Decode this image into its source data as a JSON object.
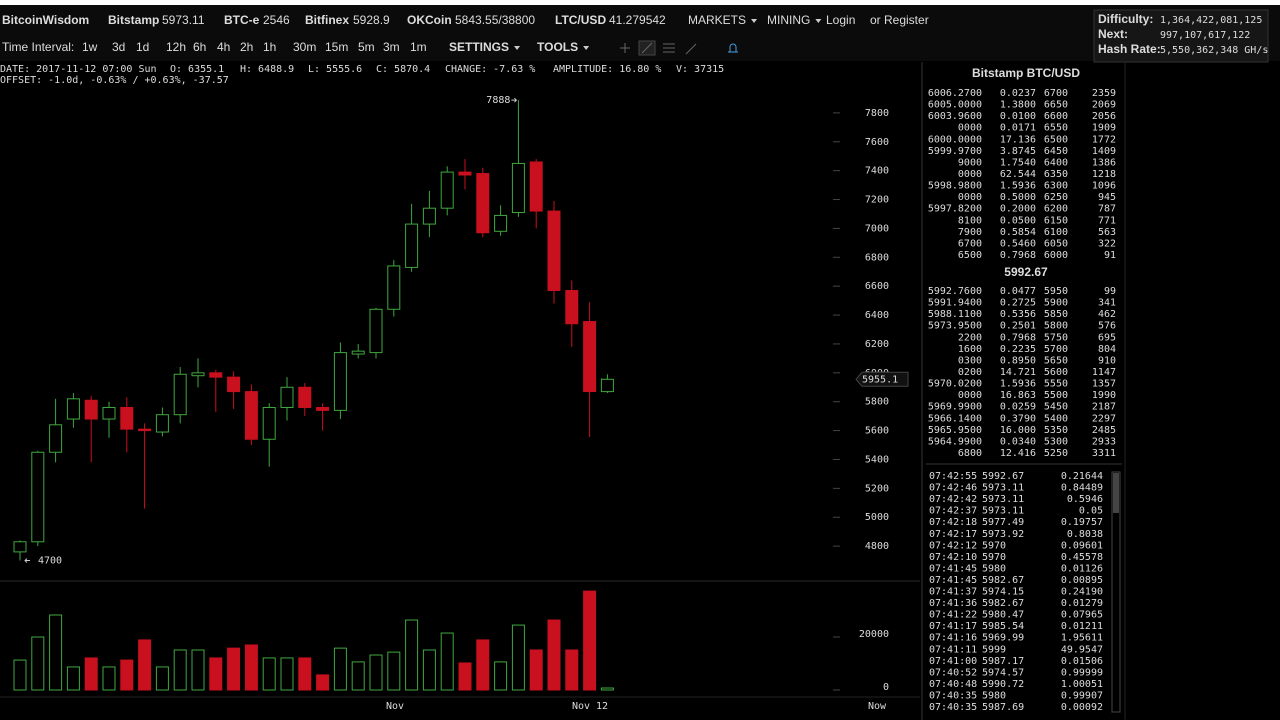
{
  "header": {
    "logo": "BitcoinWisdom",
    "tickers": [
      {
        "name": "Bitstamp",
        "price": "5973.11"
      },
      {
        "name": "BTC-e",
        "price": "2546"
      },
      {
        "name": "Bitfinex",
        "price": "5928.9"
      },
      {
        "name": "OKCoin",
        "price": "5843.55/38800"
      },
      {
        "name": "LTC/USD",
        "price": "41.279542"
      }
    ],
    "menus": [
      "MARKETS",
      "MINING"
    ],
    "login": "Login",
    "or": "or",
    "register": "Register"
  },
  "network": [
    {
      "label": "Difficulty:",
      "value": "1,364,422,081,125"
    },
    {
      "label": "Next:",
      "value": "997,107,617,122"
    },
    {
      "label": "Hash Rate:",
      "value": "5,550,362,348 GH/s"
    }
  ],
  "toolbar": {
    "label": "Time Interval:",
    "intervals": [
      "1w",
      "3d",
      "1d",
      "12h",
      "6h",
      "4h",
      "2h",
      "1h",
      "30m",
      "15m",
      "5m",
      "3m",
      "1m"
    ],
    "active": "1d",
    "menus": [
      "SETTINGS",
      "TOOLS"
    ]
  },
  "info": {
    "line1": [
      "DATE: 2017-11-12 07:00 Sun",
      "O: 6355.1",
      "H: 6488.9",
      "L: 5555.6",
      "C: 5870.4",
      "CHANGE: -7.63 %",
      "AMPLITUDE: 16.80 %",
      "V: 37315"
    ],
    "line2": "OFFSET: -1.0d, -0.63% / +0.63%, -37.57"
  },
  "chart": {
    "type": "candlestick",
    "up_color": "#3fa83f",
    "down_color": "#c8101e",
    "ylim": [
      4600,
      8000
    ],
    "yticks": [
      4800,
      5000,
      5200,
      5400,
      5600,
      5800,
      6000,
      6200,
      6400,
      6600,
      6800,
      7000,
      7200,
      7400,
      7600,
      7800
    ],
    "volume_ylim": [
      0,
      40000
    ],
    "volume_yticks": [
      0,
      20000
    ],
    "xticks": [
      "Nov",
      "Nov 12",
      "Now"
    ],
    "high_label": 7888,
    "low_label": 4700,
    "last_price": 5955.1,
    "candles": [
      {
        "open": 4760,
        "high": 4840,
        "low": 4700,
        "close": 4830,
        "volume": 11300
      },
      {
        "open": 4830,
        "high": 5460,
        "low": 4800,
        "close": 5450,
        "volume": 20000
      },
      {
        "open": 5450,
        "high": 5820,
        "low": 5380,
        "close": 5640,
        "volume": 28300
      },
      {
        "open": 5680,
        "high": 5860,
        "low": 5620,
        "close": 5820,
        "volume": 8700
      },
      {
        "open": 5810,
        "high": 5840,
        "low": 5380,
        "close": 5680,
        "volume": 12100
      },
      {
        "open": 5680,
        "high": 5800,
        "low": 5550,
        "close": 5760,
        "volume": 8700
      },
      {
        "open": 5760,
        "high": 5830,
        "low": 5450,
        "close": 5610,
        "volume": 11300
      },
      {
        "open": 5610,
        "high": 5650,
        "low": 5060,
        "close": 5600,
        "volume": 18900
      },
      {
        "open": 5590,
        "high": 5760,
        "low": 5560,
        "close": 5710,
        "volume": 8700
      },
      {
        "open": 5710,
        "high": 6040,
        "low": 5650,
        "close": 5990,
        "volume": 15100
      },
      {
        "open": 5980,
        "high": 6100,
        "low": 5900,
        "close": 6000,
        "volume": 15100
      },
      {
        "open": 6000,
        "high": 6020,
        "low": 5730,
        "close": 5970,
        "volume": 12100
      },
      {
        "open": 5970,
        "high": 6010,
        "low": 5750,
        "close": 5870,
        "volume": 15800
      },
      {
        "open": 5870,
        "high": 5920,
        "low": 5500,
        "close": 5540,
        "volume": 17000
      },
      {
        "open": 5540,
        "high": 5790,
        "low": 5350,
        "close": 5760,
        "volume": 12100
      },
      {
        "open": 5760,
        "high": 5970,
        "low": 5670,
        "close": 5900,
        "volume": 12100
      },
      {
        "open": 5900,
        "high": 5930,
        "low": 5700,
        "close": 5760,
        "volume": 12100
      },
      {
        "open": 5760,
        "high": 5790,
        "low": 5600,
        "close": 5740,
        "volume": 5700
      },
      {
        "open": 5740,
        "high": 6210,
        "low": 5680,
        "close": 6140,
        "volume": 15800
      },
      {
        "open": 6130,
        "high": 6200,
        "low": 6100,
        "close": 6150,
        "volume": 10600
      },
      {
        "open": 6140,
        "high": 6450,
        "low": 6100,
        "close": 6440,
        "volume": 13200
      },
      {
        "open": 6440,
        "high": 6780,
        "low": 6390,
        "close": 6740,
        "volume": 14300
      },
      {
        "open": 6730,
        "high": 7170,
        "low": 6700,
        "close": 7030,
        "volume": 26400
      },
      {
        "open": 7030,
        "high": 7260,
        "low": 6940,
        "close": 7140,
        "volume": 15100
      },
      {
        "open": 7140,
        "high": 7430,
        "low": 7090,
        "close": 7390,
        "volume": 21500
      },
      {
        "open": 7390,
        "high": 7480,
        "low": 7270,
        "close": 7370,
        "volume": 10200
      },
      {
        "open": 7380,
        "high": 7420,
        "low": 6940,
        "close": 6970,
        "volume": 18900
      },
      {
        "open": 6980,
        "high": 7160,
        "low": 6950,
        "close": 7090,
        "volume": 10600
      },
      {
        "open": 7110,
        "high": 7888,
        "low": 7080,
        "close": 7450,
        "volume": 24500
      },
      {
        "open": 7460,
        "high": 7480,
        "low": 7000,
        "close": 7120,
        "volume": 15100
      },
      {
        "open": 7120,
        "high": 7190,
        "low": 6480,
        "close": 6570,
        "volume": 26400
      },
      {
        "open": 6570,
        "high": 6640,
        "low": 6180,
        "close": 6340,
        "volume": 15100
      },
      {
        "open": 6355.1,
        "high": 6488.9,
        "low": 5555.6,
        "close": 5870.4,
        "volume": 37315
      },
      {
        "open": 5870,
        "high": 5990,
        "low": 5860,
        "close": 5955.1,
        "volume": 750
      }
    ]
  },
  "order_book": {
    "title": "Bitstamp BTC/USD",
    "last": "5992.67",
    "asks": [
      [
        "6006.2700",
        "0.0237",
        "6700",
        "2359"
      ],
      [
        "6005.0000",
        "1.3800",
        "6650",
        "2069"
      ],
      [
        "6003.9600",
        "0.0100",
        "6600",
        "2056"
      ],
      [
        "0000",
        "0.0171",
        "6550",
        "1909"
      ],
      [
        "6000.0000",
        "17.136",
        "6500",
        "1772"
      ],
      [
        "5999.9700",
        "3.8745",
        "6450",
        "1409"
      ],
      [
        "9000",
        "1.7540",
        "6400",
        "1386"
      ],
      [
        "0000",
        "62.544",
        "6350",
        "1218"
      ],
      [
        "5998.9800",
        "1.5936",
        "6300",
        "1096"
      ],
      [
        "0000",
        "0.5000",
        "6250",
        "945"
      ],
      [
        "5997.8200",
        "0.2000",
        "6200",
        "787"
      ],
      [
        "8100",
        "0.0500",
        "6150",
        "771"
      ],
      [
        "7900",
        "0.5854",
        "6100",
        "563"
      ],
      [
        "6700",
        "0.5460",
        "6050",
        "322"
      ],
      [
        "6500",
        "0.7968",
        "6000",
        "91"
      ]
    ],
    "bids": [
      [
        "5992.7600",
        "0.0477",
        "5950",
        "99"
      ],
      [
        "5991.9400",
        "0.2725",
        "5900",
        "341"
      ],
      [
        "5988.1100",
        "0.5356",
        "5850",
        "462"
      ],
      [
        "5973.9500",
        "0.2501",
        "5800",
        "576"
      ],
      [
        "2200",
        "0.7968",
        "5750",
        "695"
      ],
      [
        "1600",
        "0.2235",
        "5700",
        "804"
      ],
      [
        "0300",
        "0.8950",
        "5650",
        "910"
      ],
      [
        "0200",
        "14.721",
        "5600",
        "1147"
      ],
      [
        "5970.0200",
        "1.5936",
        "5550",
        "1357"
      ],
      [
        "0000",
        "16.863",
        "5500",
        "1990"
      ],
      [
        "5969.9900",
        "0.0259",
        "5450",
        "2187"
      ],
      [
        "5966.1400",
        "0.3790",
        "5400",
        "2297"
      ],
      [
        "5965.9500",
        "16.000",
        "5350",
        "2485"
      ],
      [
        "5964.9900",
        "0.0340",
        "5300",
        "2933"
      ],
      [
        "6800",
        "12.416",
        "5250",
        "3311"
      ]
    ]
  },
  "trades": [
    {
      "time": "07:42:55",
      "price": "5992.67",
      "amount": "0.21644",
      "side": "up"
    },
    {
      "time": "07:42:46",
      "price": "5973.11",
      "amount": "0.84489",
      "side": "down"
    },
    {
      "time": "07:42:42",
      "price": "5973.11",
      "amount": "0.5946",
      "side": "down"
    },
    {
      "time": "07:42:37",
      "price": "5973.11",
      "amount": "0.05",
      "side": "down"
    },
    {
      "time": "07:42:18",
      "price": "5977.49",
      "amount": "0.19757",
      "side": "up"
    },
    {
      "time": "07:42:17",
      "price": "5973.92",
      "amount": "0.8038",
      "side": "down"
    },
    {
      "time": "07:42:12",
      "price": "5970",
      "amount": "0.09601",
      "side": "down"
    },
    {
      "time": "07:42:10",
      "price": "5970",
      "amount": "0.45578",
      "side": "down"
    },
    {
      "time": "07:41:45",
      "price": "5980",
      "amount": "0.01126",
      "side": "up"
    },
    {
      "time": "07:41:45",
      "price": "5982.67",
      "amount": "0.00895",
      "side": "down"
    },
    {
      "time": "07:41:37",
      "price": "5974.15",
      "amount": "0.24190",
      "side": "down"
    },
    {
      "time": "07:41:36",
      "price": "5982.67",
      "amount": "0.01279",
      "side": "up"
    },
    {
      "time": "07:41:22",
      "price": "5980.47",
      "amount": "0.07965",
      "side": "up"
    },
    {
      "time": "07:41:17",
      "price": "5985.54",
      "amount": "0.01211",
      "side": "up"
    },
    {
      "time": "07:41:16",
      "price": "5969.99",
      "amount": "1.95611",
      "side": "down"
    },
    {
      "time": "07:41:11",
      "price": "5999",
      "amount": "49.9547",
      "side": "up"
    },
    {
      "time": "07:41:00",
      "price": "5987.17",
      "amount": "0.01506",
      "side": "up"
    },
    {
      "time": "07:40:52",
      "price": "5974.57",
      "amount": "0.99999",
      "side": "down"
    },
    {
      "time": "07:40:48",
      "price": "5990.72",
      "amount": "1.00051",
      "side": "up"
    },
    {
      "time": "07:40:35",
      "price": "5980",
      "amount": "0.99907",
      "side": "down"
    },
    {
      "time": "07:40:35",
      "price": "5987.69",
      "amount": "0.00092",
      "side": "up"
    }
  ]
}
